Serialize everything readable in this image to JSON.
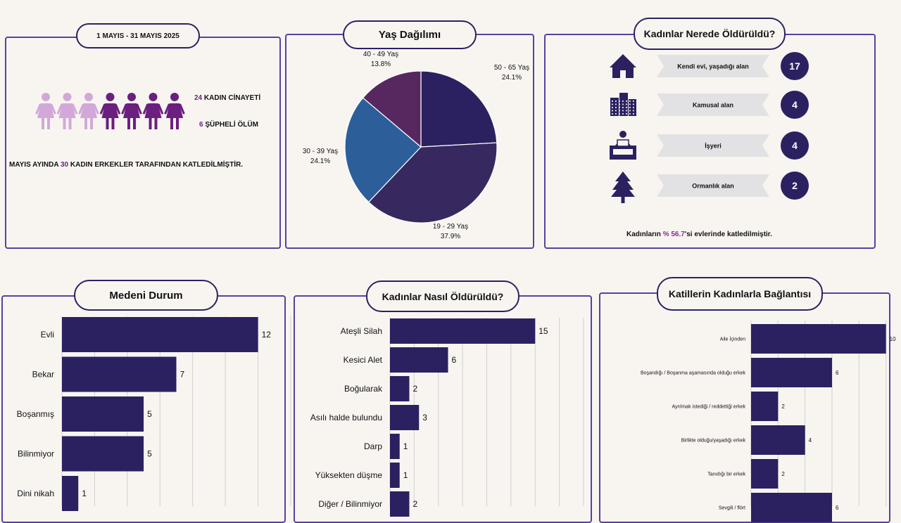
{
  "colors": {
    "navy": "#2b2161",
    "purple": "#6b1f7e",
    "lilac": "#d2a8d8",
    "panel_border": "#5b3fa0",
    "pie": [
      "#2b2161",
      "#37285f",
      "#2c5f9a",
      "#56285f"
    ]
  },
  "summary": {
    "date_range": "1 MAYIS - 31 MAYIS 2025",
    "murder_count": "24",
    "murder_label": "KADIN CİNAYETİ",
    "suspicious_count": "6",
    "suspicious_label": "ŞÜPHELİ ÖLÜM",
    "footer_prefix": "MAYIS AYINDA",
    "footer_count": "30",
    "footer_suffix": "KADIN ERKEKLER TARAFINDAN KATLEDİLMİŞTİR.",
    "figure_icon": "woman-figure-icon",
    "light_figures": 3,
    "dark_figures": 4
  },
  "places": {
    "title": "Kadınlar Nerede Öldürüldü?",
    "items": [
      {
        "label": "Kendi evi, yaşadığı alan",
        "count": "17",
        "icon": "house-icon"
      },
      {
        "label": "Kamusal alan",
        "count": "4",
        "icon": "buildings-icon"
      },
      {
        "label": "İşyeri",
        "count": "4",
        "icon": "office-worker-icon"
      },
      {
        "label": "Ormanlık alan",
        "count": "2",
        "icon": "tree-icon"
      }
    ],
    "footer_prefix": "Kadınların",
    "footer_highlight": "% 56.7",
    "footer_suffix": "'si evlerinde katledilmiştir."
  },
  "chart_data": [
    {
      "type": "pie",
      "title": "Yaş Dağılımı",
      "slices": [
        {
          "label": "50 - 65 Yaş",
          "value": 24.1,
          "pct": "24.1%"
        },
        {
          "label": "19 - 29 Yaş",
          "value": 37.9,
          "pct": "37.9%"
        },
        {
          "label": "30 - 39 Yaş",
          "value": 24.1,
          "pct": "24.1%"
        },
        {
          "label": "40 - 49 Yaş",
          "value": 13.8,
          "pct": "13.8%"
        }
      ]
    },
    {
      "type": "bar",
      "orientation": "horizontal",
      "title": "Medeni Durum",
      "categories": [
        "Evli",
        "Bekar",
        "Boşanmış",
        "Bilinmiyor",
        "Dini nikah"
      ],
      "values": [
        12,
        7,
        5,
        5,
        1
      ],
      "xlim": [
        0,
        14
      ],
      "grid": true
    },
    {
      "type": "bar",
      "orientation": "horizontal",
      "title": "Kadınlar Nasıl Öldürüldü?",
      "categories": [
        "Ateşli Silah",
        "Kesici Alet",
        "Boğularak",
        "Asılı halde bulundu",
        "Darp",
        "Yüksekten düşme",
        "Diğer / Bilinmiyor"
      ],
      "values": [
        15,
        6,
        2,
        3,
        1,
        1,
        2
      ],
      "xlim": [
        0,
        20
      ],
      "grid": true
    },
    {
      "type": "bar",
      "orientation": "horizontal",
      "title": "Katillerin Kadınlarla Bağlantısı",
      "categories": [
        "Aile İçinden",
        "Boşandığı / Boşanma aşamasında olduğu erkek",
        "Ayrılmak istediği / reddettiği erkek",
        "Birlikte olduğu/yaşadığı erkek",
        "Tanıdığı bir erkek",
        "Sevgili / flört"
      ],
      "values": [
        10,
        6,
        2,
        4,
        2,
        6
      ],
      "xlim": [
        0,
        12
      ],
      "grid": true
    }
  ]
}
